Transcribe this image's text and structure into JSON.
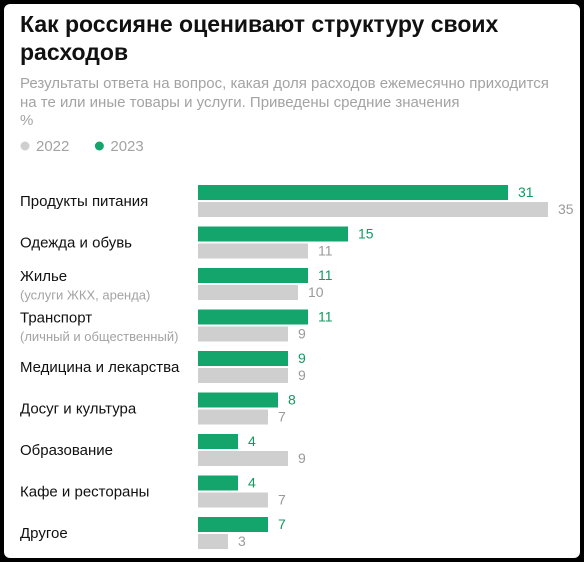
{
  "chart_data": {
    "type": "bar",
    "orientation": "horizontal",
    "title": "Как россияне оценивают структуру своих расходов",
    "subtitle": "Результаты ответа на вопрос, какая доля расходов ежемесячно приходится на те или иные товары и услуги. Приведены средние значения",
    "unit": "%",
    "categories": [
      "Продукты питания",
      "Одежда и обувь",
      "Жилье",
      "Транспорт",
      "Медицина и лекарства",
      "Досуг и культура",
      "Образование",
      "Кафе и рестораны",
      "Другое"
    ],
    "category_notes": [
      null,
      null,
      "(услуги ЖКХ, аренда)",
      "(личный и общественный)",
      null,
      null,
      null,
      null,
      null
    ],
    "series": [
      {
        "name": "2023",
        "color": "#13a56c",
        "label_color": "#13995f",
        "values": [
          31,
          15,
          11,
          11,
          9,
          8,
          4,
          4,
          7
        ]
      },
      {
        "name": "2022",
        "color": "#cfcfcf",
        "label_color": "#9a9a9a",
        "values": [
          35,
          11,
          10,
          9,
          9,
          7,
          9,
          7,
          3
        ]
      }
    ]
  }
}
